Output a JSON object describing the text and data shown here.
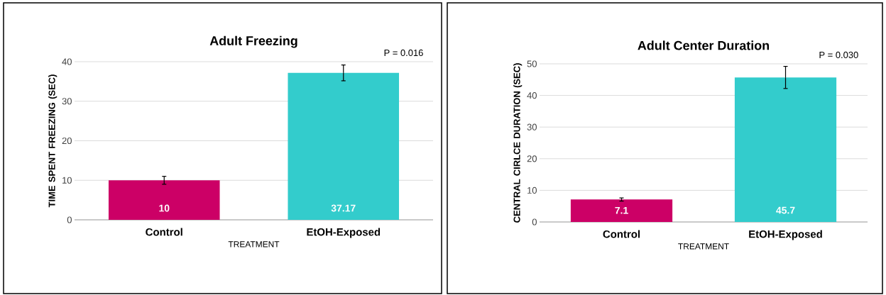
{
  "chart_data": [
    {
      "type": "bar",
      "title": "Adult Freezing",
      "xlabel": "TREATMENT",
      "ylabel": "TIME SPENT FREEZING (SEC)",
      "categories": [
        "Control",
        "EtOH-Exposed"
      ],
      "values": [
        10,
        37.17
      ],
      "colors": [
        "#cc0066",
        "#33cccc"
      ],
      "errors": [
        1,
        2
      ],
      "value_labels": [
        "10",
        "37.17"
      ],
      "ylim": [
        0,
        40
      ],
      "yticks": [
        0,
        10,
        20,
        30,
        40
      ],
      "grid": "y",
      "annotations": [
        "P = 0.016"
      ]
    },
    {
      "type": "bar",
      "title": "Adult Center Duration",
      "xlabel": "TREATMENT",
      "ylabel": "CENTRAL CIRLCE DURATION (SEC)",
      "categories": [
        "Control",
        "EtOH-Exposed"
      ],
      "values": [
        7.1,
        45.7
      ],
      "colors": [
        "#cc0066",
        "#33cccc"
      ],
      "errors": [
        0.5,
        3.5
      ],
      "value_labels": [
        "7.1",
        "45.7"
      ],
      "ylim": [
        0,
        50
      ],
      "yticks": [
        0,
        10,
        20,
        30,
        40,
        50
      ],
      "grid": "y",
      "annotations": [
        "P = 0.030"
      ]
    }
  ]
}
